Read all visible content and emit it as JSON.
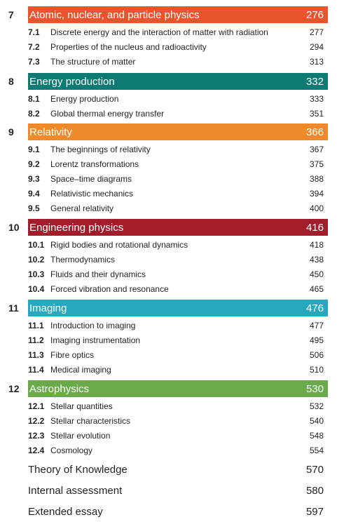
{
  "chapters": [
    {
      "number": "7",
      "title": "Atomic, nuclear, and particle physics",
      "page": "276",
      "color": "#e8552d",
      "sections": [
        {
          "number": "7.1",
          "title": "Discrete energy and the interaction of matter with radiation",
          "page": "277"
        },
        {
          "number": "7.2",
          "title": "Properties of the nucleus and radioactivity",
          "page": "294"
        },
        {
          "number": "7.3",
          "title": "The structure of matter",
          "page": "313"
        }
      ]
    },
    {
      "number": "8",
      "title": "Energy production",
      "page": "332",
      "color": "#0e7a74",
      "sections": [
        {
          "number": "8.1",
          "title": "Energy production",
          "page": "333"
        },
        {
          "number": "8.2",
          "title": "Global thermal energy transfer",
          "page": "351"
        }
      ]
    },
    {
      "number": "9",
      "title": "Relativity",
      "page": "366",
      "color": "#ee8a2b",
      "sections": [
        {
          "number": "9.1",
          "title": "The beginnings of relativity",
          "page": "367"
        },
        {
          "number": "9.2",
          "title": "Lorentz transformations",
          "page": "375"
        },
        {
          "number": "9.3",
          "title": "Space–time diagrams",
          "page": "388"
        },
        {
          "number": "9.4",
          "title": "Relativistic mechanics",
          "page": "394"
        },
        {
          "number": "9.5",
          "title": "General relativity",
          "page": "400"
        }
      ]
    },
    {
      "number": "10",
      "title": "Engineering physics",
      "page": "416",
      "color": "#a31c2a",
      "sections": [
        {
          "number": "10.1",
          "title": "Rigid bodies and rotational dynamics",
          "page": "418"
        },
        {
          "number": "10.2",
          "title": "Thermodynamics",
          "page": "438"
        },
        {
          "number": "10.3",
          "title": "Fluids and their dynamics",
          "page": "450"
        },
        {
          "number": "10.4",
          "title": "Forced vibration and resonance",
          "page": "465"
        }
      ]
    },
    {
      "number": "11",
      "title": "Imaging",
      "page": "476",
      "color": "#27a8c0",
      "sections": [
        {
          "number": "11.1",
          "title": "Introduction to imaging",
          "page": "477"
        },
        {
          "number": "11.2",
          "title": "Imaging instrumentation",
          "page": "495"
        },
        {
          "number": "11.3",
          "title": "Fibre optics",
          "page": "506"
        },
        {
          "number": "11.4",
          "title": "Medical imaging",
          "page": "510"
        }
      ]
    },
    {
      "number": "12",
      "title": "Astrophysics",
      "page": "530",
      "color": "#6aaa4a",
      "sections": [
        {
          "number": "12.1",
          "title": "Stellar quantities",
          "page": "532"
        },
        {
          "number": "12.2",
          "title": "Stellar characteristics",
          "page": "540"
        },
        {
          "number": "12.3",
          "title": "Stellar evolution",
          "page": "548"
        },
        {
          "number": "12.4",
          "title": "Cosmology",
          "page": "554"
        }
      ]
    }
  ],
  "extras": [
    {
      "title": "Theory of Knowledge",
      "page": "570"
    },
    {
      "title": "Internal assessment",
      "page": "580"
    },
    {
      "title": "Extended essay",
      "page": "597"
    }
  ]
}
